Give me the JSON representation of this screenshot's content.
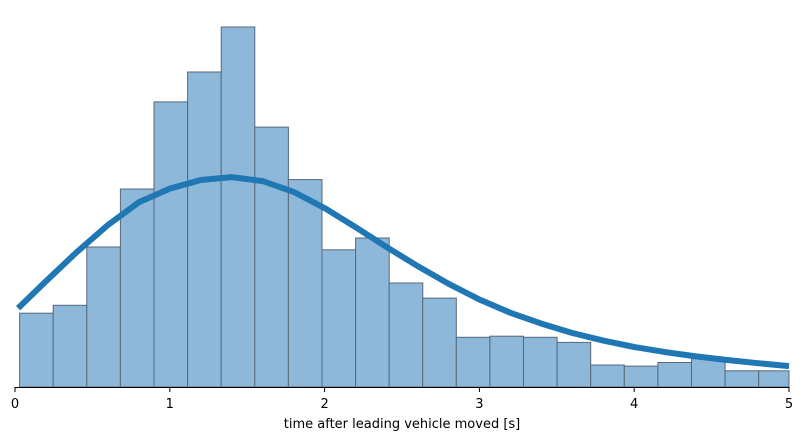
{
  "chart_data": {
    "type": "bar",
    "title": "",
    "xlabel": "time after leading vehicle moved [s]",
    "ylabel": "",
    "xlim": [
      0,
      5
    ],
    "ylim": [
      0,
      1.0
    ],
    "x_ticks": [
      0,
      1,
      2,
      3,
      4,
      5
    ],
    "x_tick_labels": [
      "0",
      "1",
      "2",
      "3",
      "4",
      "5"
    ],
    "y_axis_visible": false,
    "grid": false,
    "bin_edges": [
      0.03,
      0.247,
      0.464,
      0.681,
      0.898,
      1.115,
      1.332,
      1.549,
      1.766,
      1.983,
      2.2,
      2.417,
      2.634,
      2.851,
      3.068,
      3.285,
      3.502,
      3.719,
      3.936,
      4.153,
      4.37,
      4.587,
      4.804,
      5.0
    ],
    "values": [
      0.205,
      0.227,
      0.389,
      0.55,
      0.792,
      0.875,
      1.0,
      0.722,
      0.576,
      0.381,
      0.414,
      0.289,
      0.247,
      0.138,
      0.141,
      0.138,
      0.124,
      0.061,
      0.058,
      0.068,
      0.079,
      0.045,
      0.045
    ],
    "series": [
      {
        "type": "line",
        "x": [
          0.02,
          0.2,
          0.4,
          0.6,
          0.8,
          1.0,
          1.2,
          1.4,
          1.6,
          1.8,
          2.0,
          2.2,
          2.4,
          2.6,
          2.8,
          3.0,
          3.2,
          3.4,
          3.6,
          3.8,
          4.0,
          4.2,
          4.4,
          4.6,
          4.8,
          5.0
        ],
        "y": [
          0.219,
          0.294,
          0.375,
          0.45,
          0.513,
          0.551,
          0.575,
          0.583,
          0.572,
          0.542,
          0.497,
          0.444,
          0.389,
          0.336,
          0.287,
          0.243,
          0.206,
          0.176,
          0.15,
          0.129,
          0.111,
          0.097,
          0.085,
          0.075,
          0.066,
          0.058
        ]
      }
    ],
    "colors": {
      "bars": "#8db8da",
      "bar_edge": "#56687a",
      "curve": "#1f77b4"
    }
  }
}
